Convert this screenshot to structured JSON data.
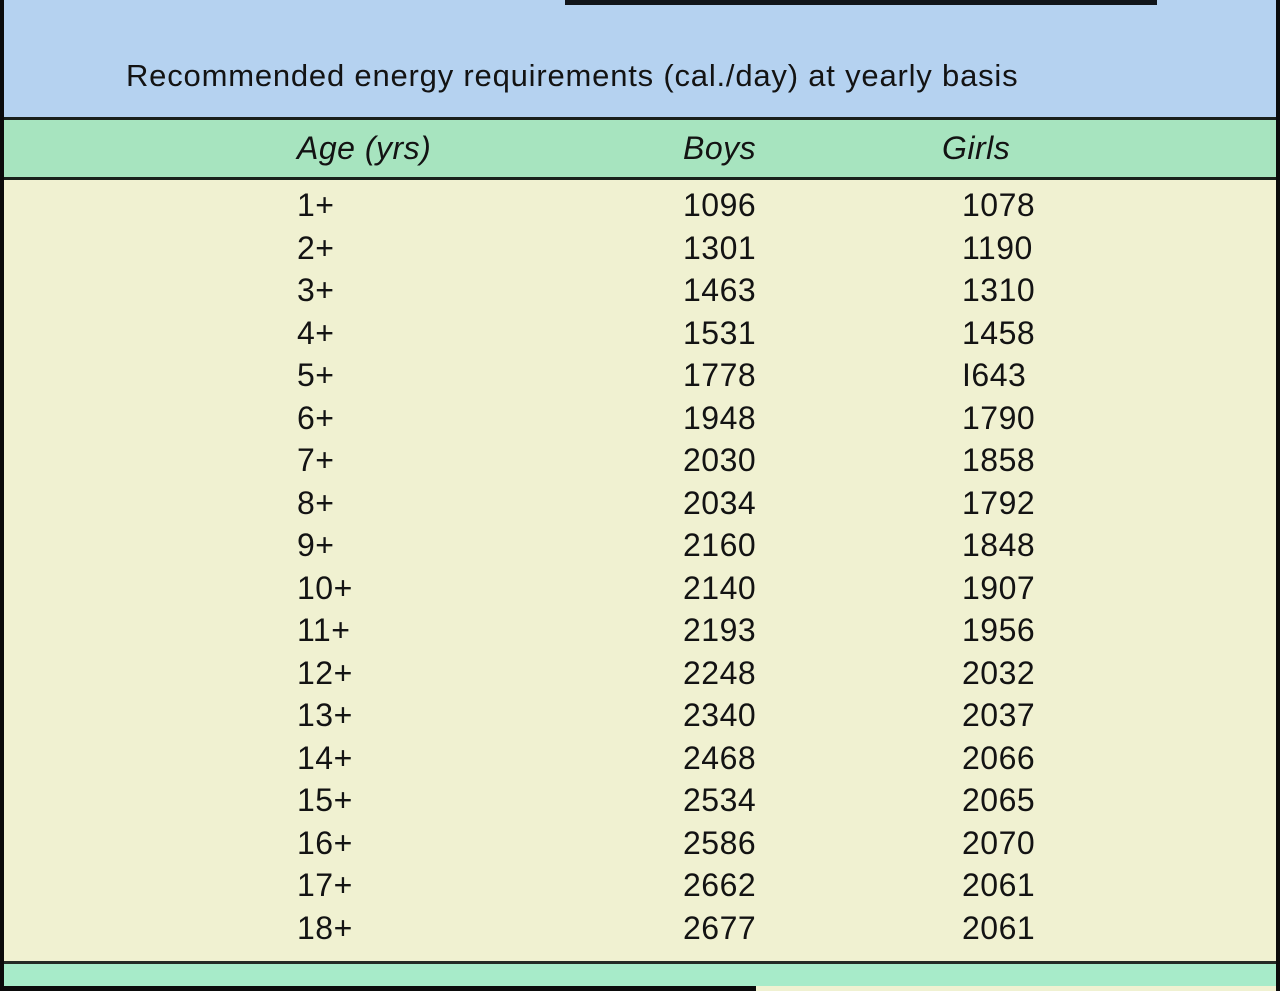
{
  "title": "Recommended energy requirements (cal./day) at yearly basis",
  "table": {
    "headers": {
      "age": "Age (yrs)",
      "boys": "Boys",
      "girls": "Girls"
    },
    "rows": [
      {
        "age": "1+",
        "boys": "1096",
        "girls": "1078"
      },
      {
        "age": "2+",
        "boys": "1301",
        "girls": "1190"
      },
      {
        "age": "3+",
        "boys": "1463",
        "girls": "1310"
      },
      {
        "age": "4+",
        "boys": "1531",
        "girls": "1458"
      },
      {
        "age": "5+",
        "boys": "1778",
        "girls": "I643"
      },
      {
        "age": "6+",
        "boys": "1948",
        "girls": "1790"
      },
      {
        "age": "7+",
        "boys": "2030",
        "girls": "1858"
      },
      {
        "age": "8+",
        "boys": "2034",
        "girls": "1792"
      },
      {
        "age": "9+",
        "boys": "2160",
        "girls": "1848"
      },
      {
        "age": "10+",
        "boys": "2140",
        "girls": "1907"
      },
      {
        "age": "11+",
        "boys": "2193",
        "girls": "1956"
      },
      {
        "age": "12+",
        "boys": "2248",
        "girls": "2032"
      },
      {
        "age": "13+",
        "boys": "2340",
        "girls": "2037"
      },
      {
        "age": "14+",
        "boys": "2468",
        "girls": "2066"
      },
      {
        "age": "15+",
        "boys": "2534",
        "girls": "2065"
      },
      {
        "age": "16+",
        "boys": "2586",
        "girls": "2070"
      },
      {
        "age": "17+",
        "boys": "2662",
        "girls": "2061"
      },
      {
        "age": "18+",
        "boys": "2677",
        "girls": "2061"
      }
    ]
  },
  "colors": {
    "title_band": "#b5d2f0",
    "header_band": "#a7e4bf",
    "body_band": "#f0f1d1",
    "footer_band": "#a7ebc9",
    "rule": "#19201b",
    "ink": "#131313",
    "scan_black": "#0b0b0b"
  }
}
